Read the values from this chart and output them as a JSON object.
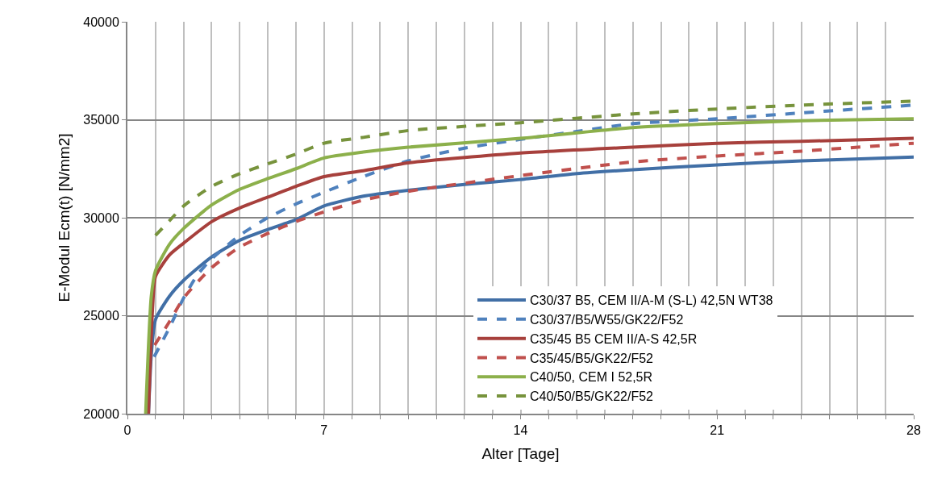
{
  "chart_data": {
    "type": "line",
    "xlabel": "Alter [Tage]",
    "ylabel": "E-Modul Ecm(t) [N/mm2]",
    "xlim": [
      0,
      28
    ],
    "ylim": [
      20000,
      40000
    ],
    "xticks": [
      0,
      {
        "value": 1,
        "label": null
      },
      {
        "value": 2,
        "label": null
      },
      {
        "value": 3,
        "label": null
      },
      {
        "value": 4,
        "label": null
      },
      {
        "value": 5,
        "label": null
      },
      {
        "value": 6,
        "label": null
      },
      7,
      {
        "value": 8,
        "label": null
      },
      {
        "value": 9,
        "label": null
      },
      {
        "value": 10,
        "label": null
      },
      {
        "value": 11,
        "label": null
      },
      {
        "value": 12,
        "label": null
      },
      {
        "value": 13,
        "label": null
      },
      14,
      {
        "value": 15,
        "label": null
      },
      {
        "value": 16,
        "label": null
      },
      {
        "value": 17,
        "label": null
      },
      {
        "value": 18,
        "label": null
      },
      {
        "value": 19,
        "label": null
      },
      {
        "value": 20,
        "label": null
      },
      21,
      {
        "value": 22,
        "label": null
      },
      {
        "value": 23,
        "label": null
      },
      {
        "value": 24,
        "label": null
      },
      {
        "value": 25,
        "label": null
      },
      {
        "value": 26,
        "label": null
      },
      {
        "value": 27,
        "label": null
      },
      28
    ],
    "yticks": [
      20000,
      25000,
      30000,
      35000,
      40000
    ],
    "grid": true,
    "legend": "bottom right",
    "marker": "none",
    "series": [
      {
        "name": "C30/37 B5, CEM II/A-M (S-L) 42,5N WT38",
        "color": "#416fa6",
        "line_style": "solid",
        "x": [
          0.75,
          0.85,
          1,
          1.5,
          2,
          3,
          4,
          5,
          6,
          7,
          8.4,
          10,
          12,
          14,
          16,
          18,
          21,
          24,
          28
        ],
        "values": [
          20000,
          23000,
          24800,
          26000,
          26800,
          28000,
          28850,
          29400,
          29900,
          30600,
          31100,
          31400,
          31700,
          31950,
          32250,
          32450,
          32700,
          32900,
          33100
        ]
      },
      {
        "name": "C30/37/B5/W55/GK22/F52",
        "color": "#4f81bd",
        "line_style": "dashed",
        "x": [
          0.95,
          1.5,
          2,
          2.5,
          3,
          4,
          5,
          6,
          7,
          8.4,
          10,
          12,
          14,
          16,
          18,
          21,
          24,
          28
        ],
        "values": [
          22900,
          24400,
          25900,
          27100,
          27900,
          29100,
          30000,
          30700,
          31300,
          32100,
          32900,
          33550,
          34000,
          34400,
          34800,
          35050,
          35350,
          35750
        ]
      },
      {
        "name": "C35/45 B5 CEM II/A-S 42,5R",
        "color": "#a7403c",
        "line_style": "solid",
        "x": [
          0.75,
          0.9,
          1,
          1.5,
          2,
          3,
          4,
          5,
          6,
          7,
          8.4,
          10,
          14,
          18,
          21,
          24,
          28
        ],
        "values": [
          20000,
          25500,
          27000,
          28100,
          28700,
          29800,
          30500,
          31050,
          31600,
          32100,
          32400,
          32800,
          33300,
          33600,
          33800,
          33900,
          34050
        ]
      },
      {
        "name": "C35/45/B5/GK22/F52",
        "color": "#c0504d",
        "line_style": "dashed",
        "x": [
          0.97,
          1.5,
          2,
          3,
          4,
          5,
          6,
          7,
          8.4,
          10,
          14,
          18,
          21,
          24,
          28
        ],
        "values": [
          23500,
          24700,
          25900,
          27450,
          28500,
          29200,
          29800,
          30300,
          30900,
          31350,
          32150,
          32850,
          33150,
          33400,
          33800
        ]
      },
      {
        "name": "C40/50, CEM I 52,5R",
        "color": "#8cb04b",
        "line_style": "solid",
        "x": [
          0.65,
          0.85,
          1,
          1.5,
          2,
          3,
          4,
          5,
          6,
          7,
          8.4,
          10,
          14,
          18,
          21,
          24,
          28
        ],
        "values": [
          20000,
          26000,
          27300,
          28650,
          29450,
          30650,
          31450,
          32000,
          32500,
          33050,
          33350,
          33600,
          34050,
          34600,
          34800,
          34950,
          35050
        ]
      },
      {
        "name": "C40/50/B5/GK22/F52",
        "color": "#77933c",
        "line_style": "dashed",
        "x": [
          1,
          1.5,
          2,
          3,
          4,
          5,
          6,
          7,
          8.4,
          10,
          14,
          18,
          21,
          24,
          28
        ],
        "values": [
          29100,
          29850,
          30600,
          31600,
          32250,
          32750,
          33250,
          33800,
          34100,
          34450,
          34850,
          35300,
          35550,
          35750,
          35950
        ]
      }
    ]
  }
}
